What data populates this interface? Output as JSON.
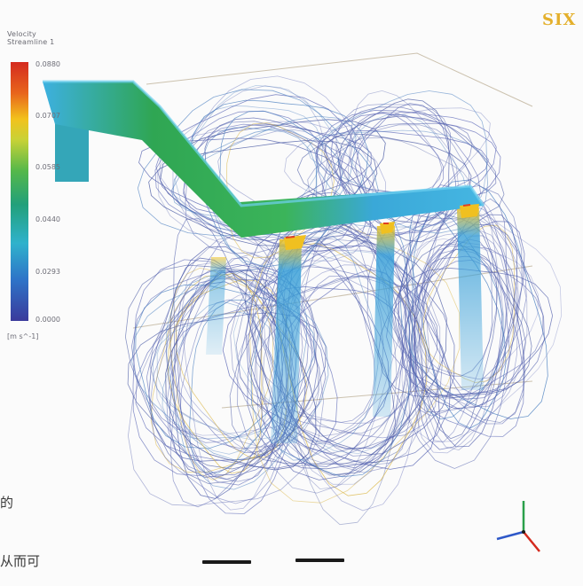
{
  "legend": {
    "title_line1": "Velocity",
    "title_line2": "Streamline 1",
    "ticks": [
      "0.0880",
      "0.0707",
      "0.0585",
      "0.0440",
      "0.0293",
      "0.0000"
    ],
    "unit": "[m s^-1]"
  },
  "logo": {
    "text": "SIX"
  },
  "text_fragments": [
    "的",
    "从而可"
  ],
  "colors": {
    "streamline": "#4e5cab",
    "duct_top": "#39a7d6",
    "duct_mid": "#2fa653",
    "jet": "#3aa0d8",
    "background": "#fbfbfb"
  }
}
